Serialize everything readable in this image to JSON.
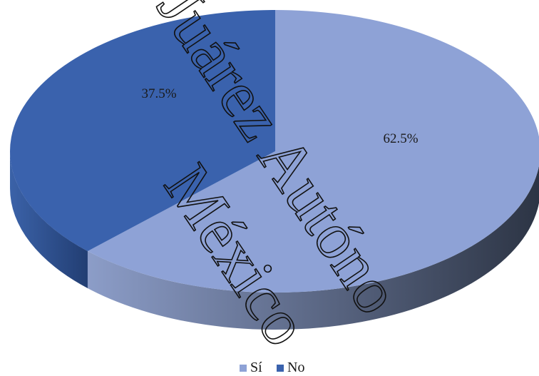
{
  "chart_data": {
    "type": "pie",
    "style": "3d",
    "categories": [
      "Sí",
      "No"
    ],
    "values": [
      62.5,
      37.5
    ],
    "data_labels": [
      "62.5%",
      "37.5%"
    ],
    "colors": [
      "#8ea2d6",
      "#3a62ad"
    ],
    "side_colors_light": [
      "#8c9dc8",
      "#3b62a8"
    ],
    "side_colors_dark": [
      "#2c3444",
      "#223e73"
    ],
    "legend": {
      "position": "bottom",
      "entries": [
        "Sí",
        "No"
      ]
    }
  },
  "watermark": {
    "line1": "Juárez Autóno",
    "line2": "México"
  }
}
